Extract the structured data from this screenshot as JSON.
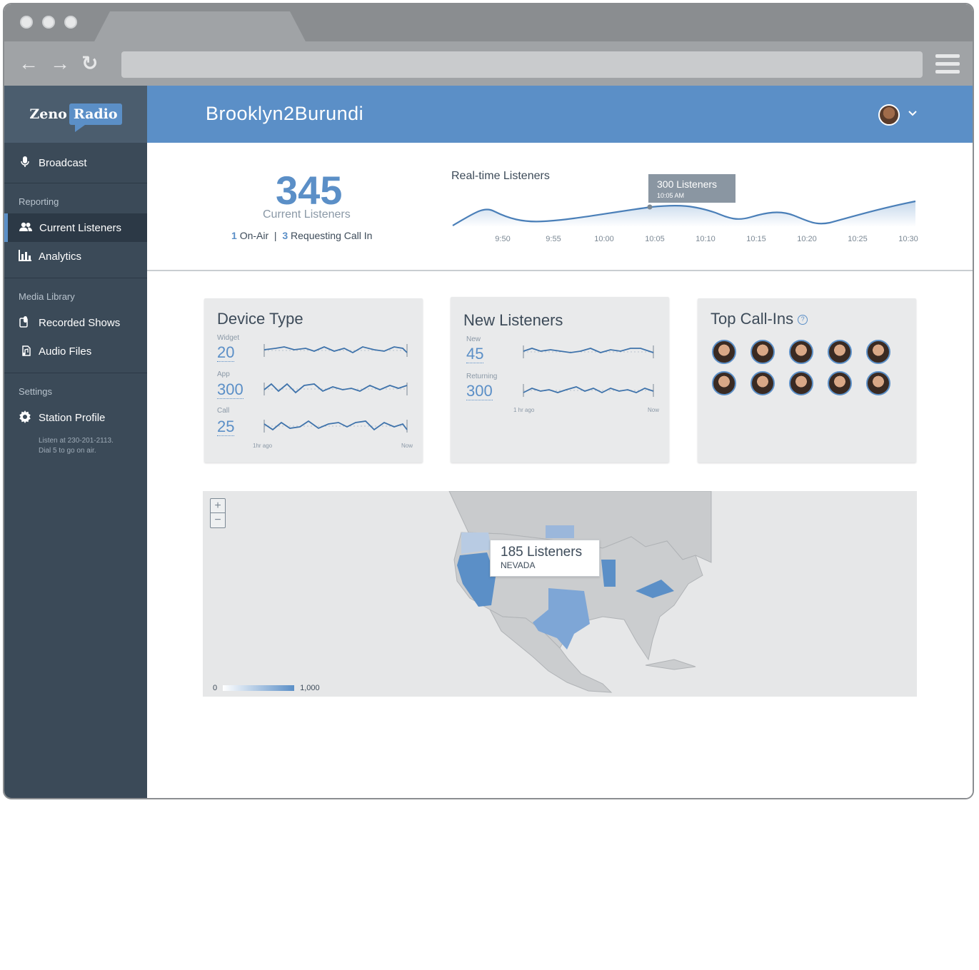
{
  "app": {
    "logo_text": "Zeno",
    "logo_highlight": "Radio"
  },
  "sidebar": {
    "broadcast": "Broadcast",
    "reporting_header": "Reporting",
    "current_listeners": "Current Listeners",
    "analytics": "Analytics",
    "media_header": "Media Library",
    "recorded_shows": "Recorded Shows",
    "audio_files": "Audio Files",
    "settings_header": "Settings",
    "station_profile": "Station Profile",
    "note_line1": "Listen at 230-201-2113.",
    "note_line2": "Dial 5 to go on air."
  },
  "header": {
    "station_name": "Brooklyn2Burundi"
  },
  "stats": {
    "current_listeners": "345",
    "current_label": "Current Listeners",
    "on_air_count": "1",
    "on_air_label": "On-Air",
    "separator": "|",
    "requesting_count": "3",
    "requesting_label": "Requesting Call In"
  },
  "realtime": {
    "title": "Real-time Listeners",
    "tooltip_value": "300 Listeners",
    "tooltip_time": "10:05 AM",
    "ticks": [
      "9:50",
      "9:55",
      "10:00",
      "10:05",
      "10:10",
      "10:15",
      "10:20",
      "10:25",
      "10:30"
    ]
  },
  "device_type": {
    "title": "Device Type",
    "metrics": [
      {
        "label": "Widget",
        "value": "20"
      },
      {
        "label": "App",
        "value": "300"
      },
      {
        "label": "Call",
        "value": "25"
      }
    ],
    "axis_start": "1hr ago",
    "axis_end": "Now"
  },
  "new_listeners": {
    "title": "New Listeners",
    "metrics": [
      {
        "label": "New",
        "value": "45"
      },
      {
        "label": "Returning",
        "value": "300"
      }
    ],
    "axis_start": "1 hr ago",
    "axis_end": "Now"
  },
  "top_callins": {
    "title": "Top Call-Ins",
    "help": "?"
  },
  "map": {
    "zoom_in": "+",
    "zoom_out": "−",
    "tooltip_value": "185 Listeners",
    "tooltip_state": "NEVADA",
    "legend_min": "0",
    "legend_max": "1,000"
  },
  "colors": {
    "accent": "#5b8fc7",
    "sidebar": "#3b4a58",
    "sidebar_dark": "#2c3946",
    "card": "#e9eaeb"
  }
}
